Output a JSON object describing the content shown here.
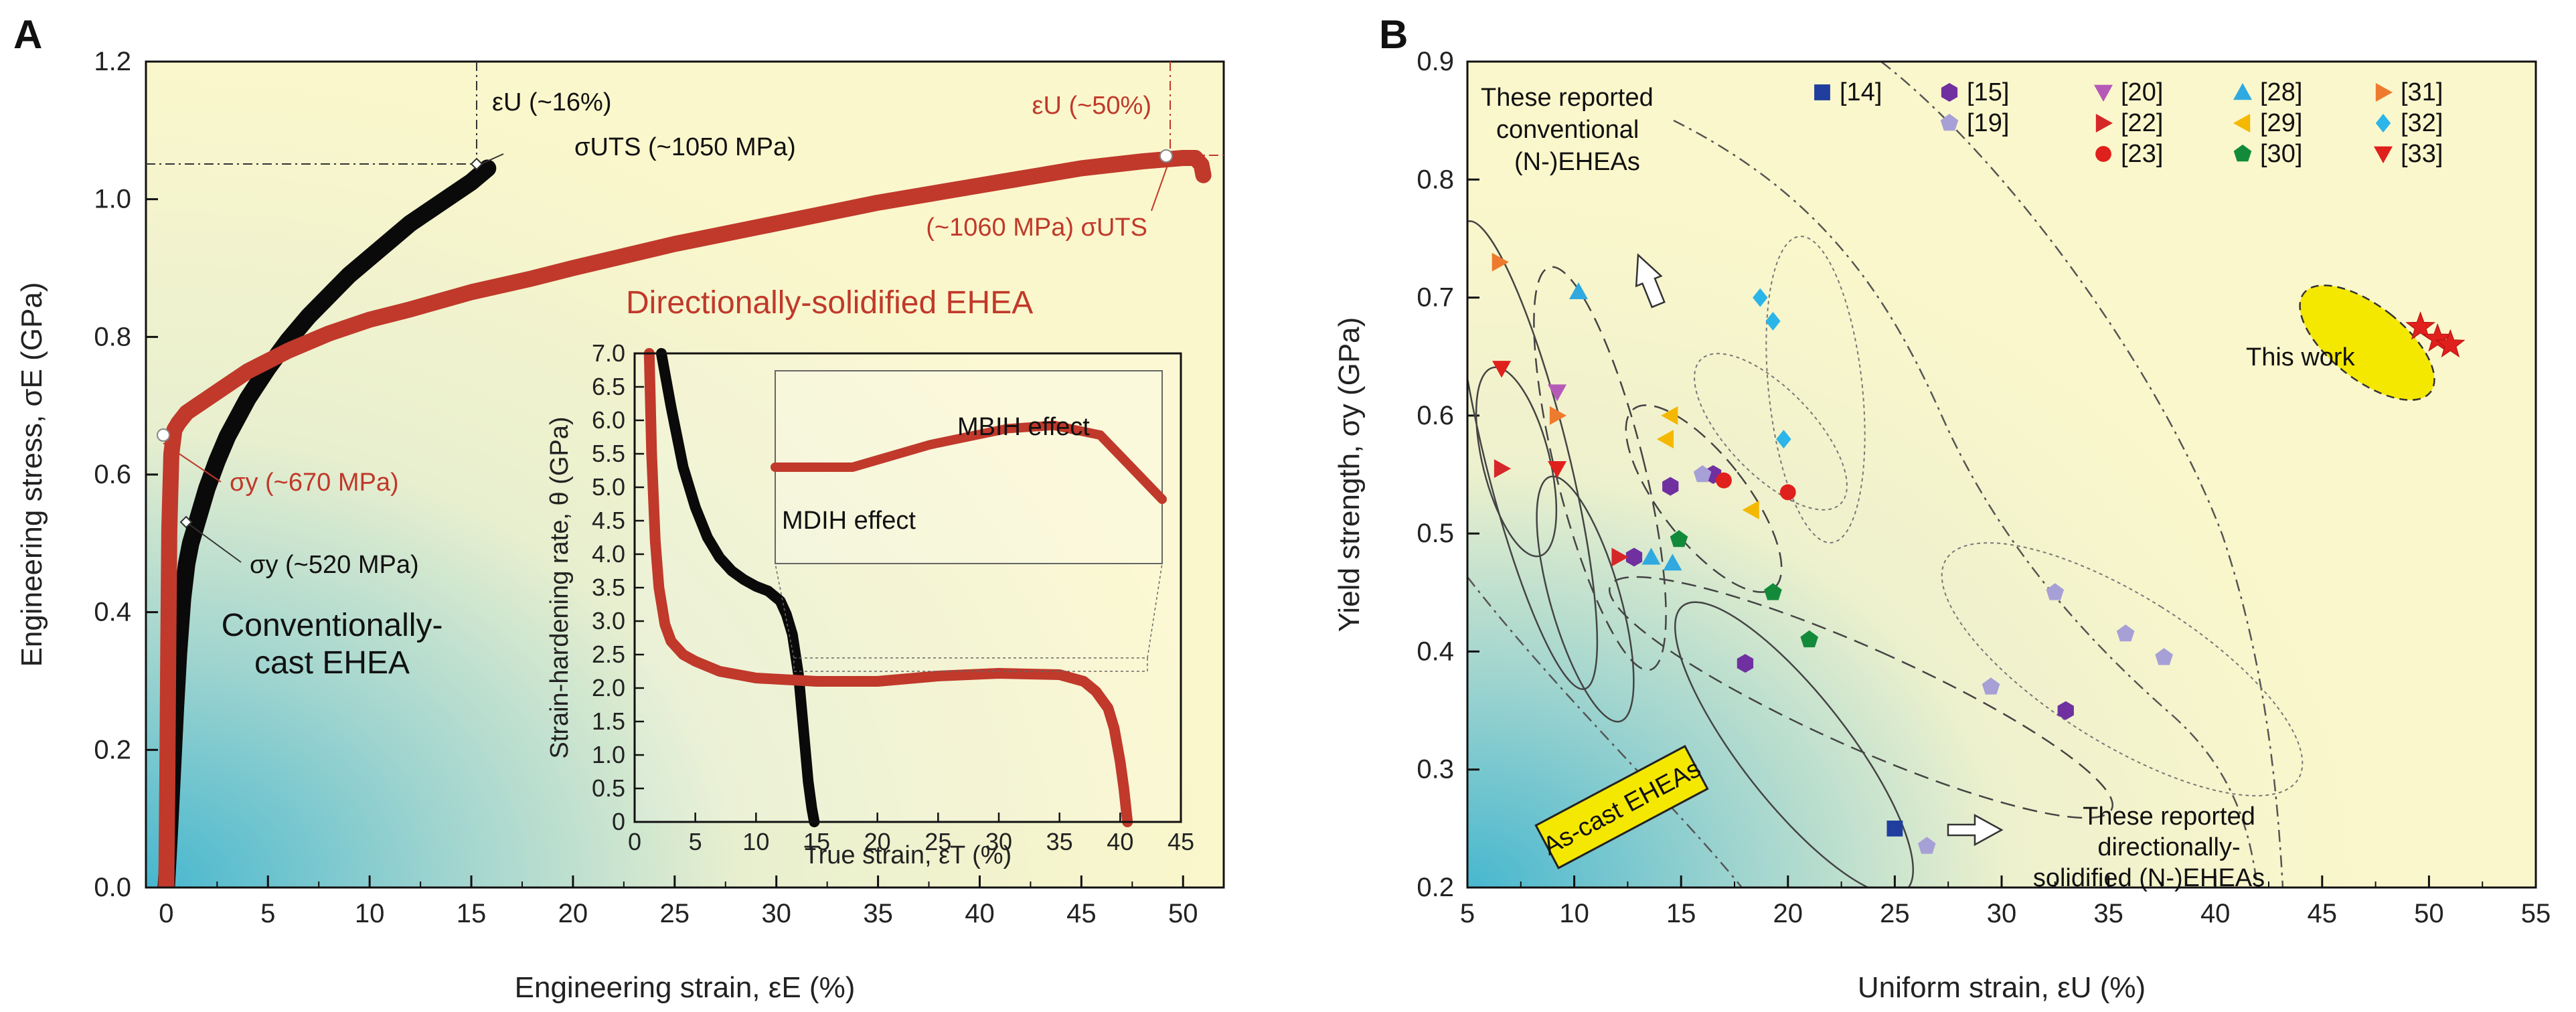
{
  "panels": {
    "a": "A",
    "b": "B"
  },
  "colors": {
    "black_curve": "#0a0a0a",
    "red_curve": "#c0392b",
    "bg_light": "#fbf7cc",
    "bg_teal": "#55c0cf"
  },
  "chart_data": [
    {
      "id": "A",
      "type": "line",
      "title": "",
      "xlabel": "Engineering strain, εE (%)",
      "ylabel": "Engineering stress, σE (GPa)",
      "xlim": [
        -1,
        52
      ],
      "ylim": [
        0.0,
        1.2
      ],
      "xticks": [
        "0",
        "5",
        "10",
        "15",
        "20",
        "25",
        "30",
        "35",
        "40",
        "45",
        "50"
      ],
      "yticks": [
        "0.0",
        "0.2",
        "0.4",
        "0.6",
        "0.8",
        "1.0",
        "1.2"
      ],
      "series": [
        {
          "name": "Conventionally-cast EHEA",
          "color": "#0a0a0a",
          "x": [
            0,
            0.15,
            0.3,
            0.45,
            0.6,
            0.8,
            1.0,
            1.2,
            1.4,
            1.7,
            2.0,
            2.5,
            3.0,
            4.0,
            5.0,
            6.0,
            7.0,
            8.0,
            9.0,
            10.0,
            11.0,
            12.0,
            13.0,
            14.0,
            15.0,
            15.8
          ],
          "y": [
            0.0,
            0.08,
            0.17,
            0.26,
            0.34,
            0.42,
            0.47,
            0.5,
            0.52,
            0.55,
            0.58,
            0.62,
            0.655,
            0.71,
            0.755,
            0.795,
            0.83,
            0.86,
            0.89,
            0.915,
            0.94,
            0.965,
            0.985,
            1.005,
            1.025,
            1.045
          ]
        },
        {
          "name": "Directionally-solidified EHEA",
          "color": "#c0392b",
          "x": [
            0,
            0.05,
            0.1,
            0.15,
            0.25,
            0.4,
            0.6,
            1.0,
            1.5,
            2.0,
            3.0,
            4.0,
            5.0,
            6.0,
            8.0,
            10.0,
            12.0,
            15.0,
            18.0,
            20.0,
            25.0,
            30.0,
            35.0,
            40.0,
            45.0,
            48.0,
            50.0,
            50.6,
            50.9,
            51.0
          ],
          "y": [
            0.0,
            0.15,
            0.35,
            0.52,
            0.63,
            0.665,
            0.675,
            0.69,
            0.7,
            0.71,
            0.73,
            0.75,
            0.765,
            0.78,
            0.805,
            0.825,
            0.84,
            0.865,
            0.885,
            0.9,
            0.935,
            0.965,
            0.995,
            1.02,
            1.045,
            1.055,
            1.06,
            1.06,
            1.05,
            1.035
          ]
        }
      ],
      "annotations": {
        "eu_conv": "εU (~16%)",
        "eu_ds": "εU (~50%)",
        "uts_conv": "σUTS (~1050 MPa)",
        "uts_ds": "(~1060 MPa) σUTS",
        "sy_ds": "σy (~670 MPa)",
        "sy_conv": "σy (~520 MPa)",
        "label_ds": "Directionally-solidified EHEA",
        "label_conv_1": "Conventionally-",
        "label_conv_2": "cast EHEA"
      }
    },
    {
      "id": "A-inset",
      "type": "line",
      "xlabel": "True strain, εT (%)",
      "ylabel": "Strain-hardening rate, θ (GPa)",
      "xlim": [
        0,
        45
      ],
      "ylim": [
        0.0,
        7.0
      ],
      "xticks": [
        "0",
        "5",
        "10",
        "15",
        "20",
        "25",
        "30",
        "35",
        "40",
        "45"
      ],
      "yticks": [
        "0",
        "0.5",
        "1.0",
        "1.5",
        "2.0",
        "2.5",
        "3.0",
        "3.5",
        "4.0",
        "4.5",
        "5.0",
        "5.5",
        "6.0",
        "6.5",
        "7.0"
      ],
      "series": [
        {
          "name": "Conventionally-cast",
          "color": "#0a0a0a",
          "x": [
            2.2,
            3,
            4,
            5,
            6,
            7,
            8,
            9,
            10,
            11,
            12,
            12.5,
            13,
            13.5,
            14,
            14.3,
            14.6,
            14.8
          ],
          "y": [
            7.0,
            6.2,
            5.3,
            4.7,
            4.25,
            3.95,
            3.75,
            3.62,
            3.52,
            3.45,
            3.3,
            3.1,
            2.8,
            2.2,
            1.2,
            0.6,
            0.2,
            0.0
          ]
        },
        {
          "name": "Directionally-solidified",
          "color": "#c0392b",
          "x": [
            1.2,
            1.4,
            1.7,
            2.0,
            2.5,
            3,
            4,
            5,
            7,
            10,
            15,
            20,
            25,
            30,
            35,
            37,
            38,
            39,
            39.5,
            40,
            40.3,
            40.6
          ],
          "y": [
            7.0,
            5.5,
            4.2,
            3.5,
            2.95,
            2.7,
            2.5,
            2.4,
            2.25,
            2.15,
            2.1,
            2.1,
            2.18,
            2.22,
            2.2,
            2.1,
            1.95,
            1.7,
            1.4,
            0.9,
            0.5,
            0.0
          ]
        }
      ],
      "zoom_series": {
        "x": [
          15,
          20,
          25,
          30,
          33,
          36,
          38,
          40
        ],
        "y": [
          2.1,
          2.1,
          2.17,
          2.22,
          2.23,
          2.2,
          2.1,
          2.0
        ]
      },
      "annotations": {
        "mbih": "MBIH effect",
        "mdih": "MDIH effect"
      }
    },
    {
      "id": "B",
      "type": "scatter",
      "xlabel": "Uniform strain, εU (%)",
      "ylabel": "Yield strength, σy (GPa)",
      "xlim": [
        5,
        55
      ],
      "ylim": [
        0.2,
        0.9
      ],
      "xticks": [
        "5",
        "10",
        "15",
        "20",
        "25",
        "30",
        "35",
        "40",
        "45",
        "50",
        "55"
      ],
      "yticks": [
        "0.2",
        "0.3",
        "0.4",
        "0.5",
        "0.6",
        "0.7",
        "0.8",
        "0.9"
      ],
      "legend": [
        {
          "ref": "[14]",
          "marker": "square",
          "color": "#1f3e9e"
        },
        {
          "ref": "[15]",
          "marker": "hexagon",
          "color": "#7030a0"
        },
        {
          "ref": "[19]",
          "marker": "pentagon",
          "color": "#a7a0d6"
        },
        {
          "ref": "[20]",
          "marker": "tri-down",
          "color": "#b65ab8"
        },
        {
          "ref": "[22]",
          "marker": "tri-right",
          "color": "#d62728"
        },
        {
          "ref": "[23]",
          "marker": "circle",
          "color": "#e0201c"
        },
        {
          "ref": "[28]",
          "marker": "tri-up",
          "color": "#2fa9e0"
        },
        {
          "ref": "[29]",
          "marker": "tri-left",
          "color": "#f5b800"
        },
        {
          "ref": "[30]",
          "marker": "pentagon",
          "color": "#138a3a"
        },
        {
          "ref": "[31]",
          "marker": "tri-right",
          "color": "#ee7a2e"
        },
        {
          "ref": "[32]",
          "marker": "diamond",
          "color": "#2bb5e8"
        },
        {
          "ref": "[33]",
          "marker": "tri-down",
          "color": "#e0201c"
        }
      ],
      "points": [
        {
          "ref": "[14]",
          "x": 25.0,
          "y": 0.25
        },
        {
          "ref": "[15]",
          "x": 12.8,
          "y": 0.48
        },
        {
          "ref": "[15]",
          "x": 14.5,
          "y": 0.54
        },
        {
          "ref": "[15]",
          "x": 16.5,
          "y": 0.55
        },
        {
          "ref": "[15]",
          "x": 18.0,
          "y": 0.39
        },
        {
          "ref": "[15]",
          "x": 33.0,
          "y": 0.35
        },
        {
          "ref": "[19]",
          "x": 16.0,
          "y": 0.55
        },
        {
          "ref": "[19]",
          "x": 26.5,
          "y": 0.235
        },
        {
          "ref": "[19]",
          "x": 29.5,
          "y": 0.37
        },
        {
          "ref": "[19]",
          "x": 32.5,
          "y": 0.45
        },
        {
          "ref": "[19]",
          "x": 35.8,
          "y": 0.415
        },
        {
          "ref": "[19]",
          "x": 37.6,
          "y": 0.395
        },
        {
          "ref": "[20]",
          "x": 9.2,
          "y": 0.62
        },
        {
          "ref": "[22]",
          "x": 6.6,
          "y": 0.555
        },
        {
          "ref": "[22]",
          "x": 12.1,
          "y": 0.48
        },
        {
          "ref": "[23]",
          "x": 17.0,
          "y": 0.545
        },
        {
          "ref": "[23]",
          "x": 20.0,
          "y": 0.535
        },
        {
          "ref": "[28]",
          "x": 10.2,
          "y": 0.705
        },
        {
          "ref": "[28]",
          "x": 13.6,
          "y": 0.48
        },
        {
          "ref": "[28]",
          "x": 14.6,
          "y": 0.475
        },
        {
          "ref": "[29]",
          "x": 14.5,
          "y": 0.6
        },
        {
          "ref": "[29]",
          "x": 14.3,
          "y": 0.58
        },
        {
          "ref": "[29]",
          "x": 18.3,
          "y": 0.52
        },
        {
          "ref": "[30]",
          "x": 14.9,
          "y": 0.495
        },
        {
          "ref": "[30]",
          "x": 19.3,
          "y": 0.45
        },
        {
          "ref": "[30]",
          "x": 21.0,
          "y": 0.41
        },
        {
          "ref": "[31]",
          "x": 6.5,
          "y": 0.73
        },
        {
          "ref": "[31]",
          "x": 9.2,
          "y": 0.6
        },
        {
          "ref": "[32]",
          "x": 18.7,
          "y": 0.7
        },
        {
          "ref": "[32]",
          "x": 19.3,
          "y": 0.68
        },
        {
          "ref": "[32]",
          "x": 19.8,
          "y": 0.58
        },
        {
          "ref": "[33]",
          "x": 6.6,
          "y": 0.64
        },
        {
          "ref": "[33]",
          "x": 9.2,
          "y": 0.555
        }
      ],
      "this_work": {
        "x": [
          49.6,
          50.4,
          51.0
        ],
        "y": [
          0.675,
          0.665,
          0.66
        ]
      },
      "annotations": {
        "conv_1": "These reported",
        "conv_2": "conventional",
        "conv_3": "(N-)EHEAs",
        "ds_1": "These reported",
        "ds_2": "directionally-",
        "ds_3": "solidified (N-)EHEAs",
        "this_work": "This work",
        "ascast": "As-cast EHEAs"
      }
    }
  ]
}
